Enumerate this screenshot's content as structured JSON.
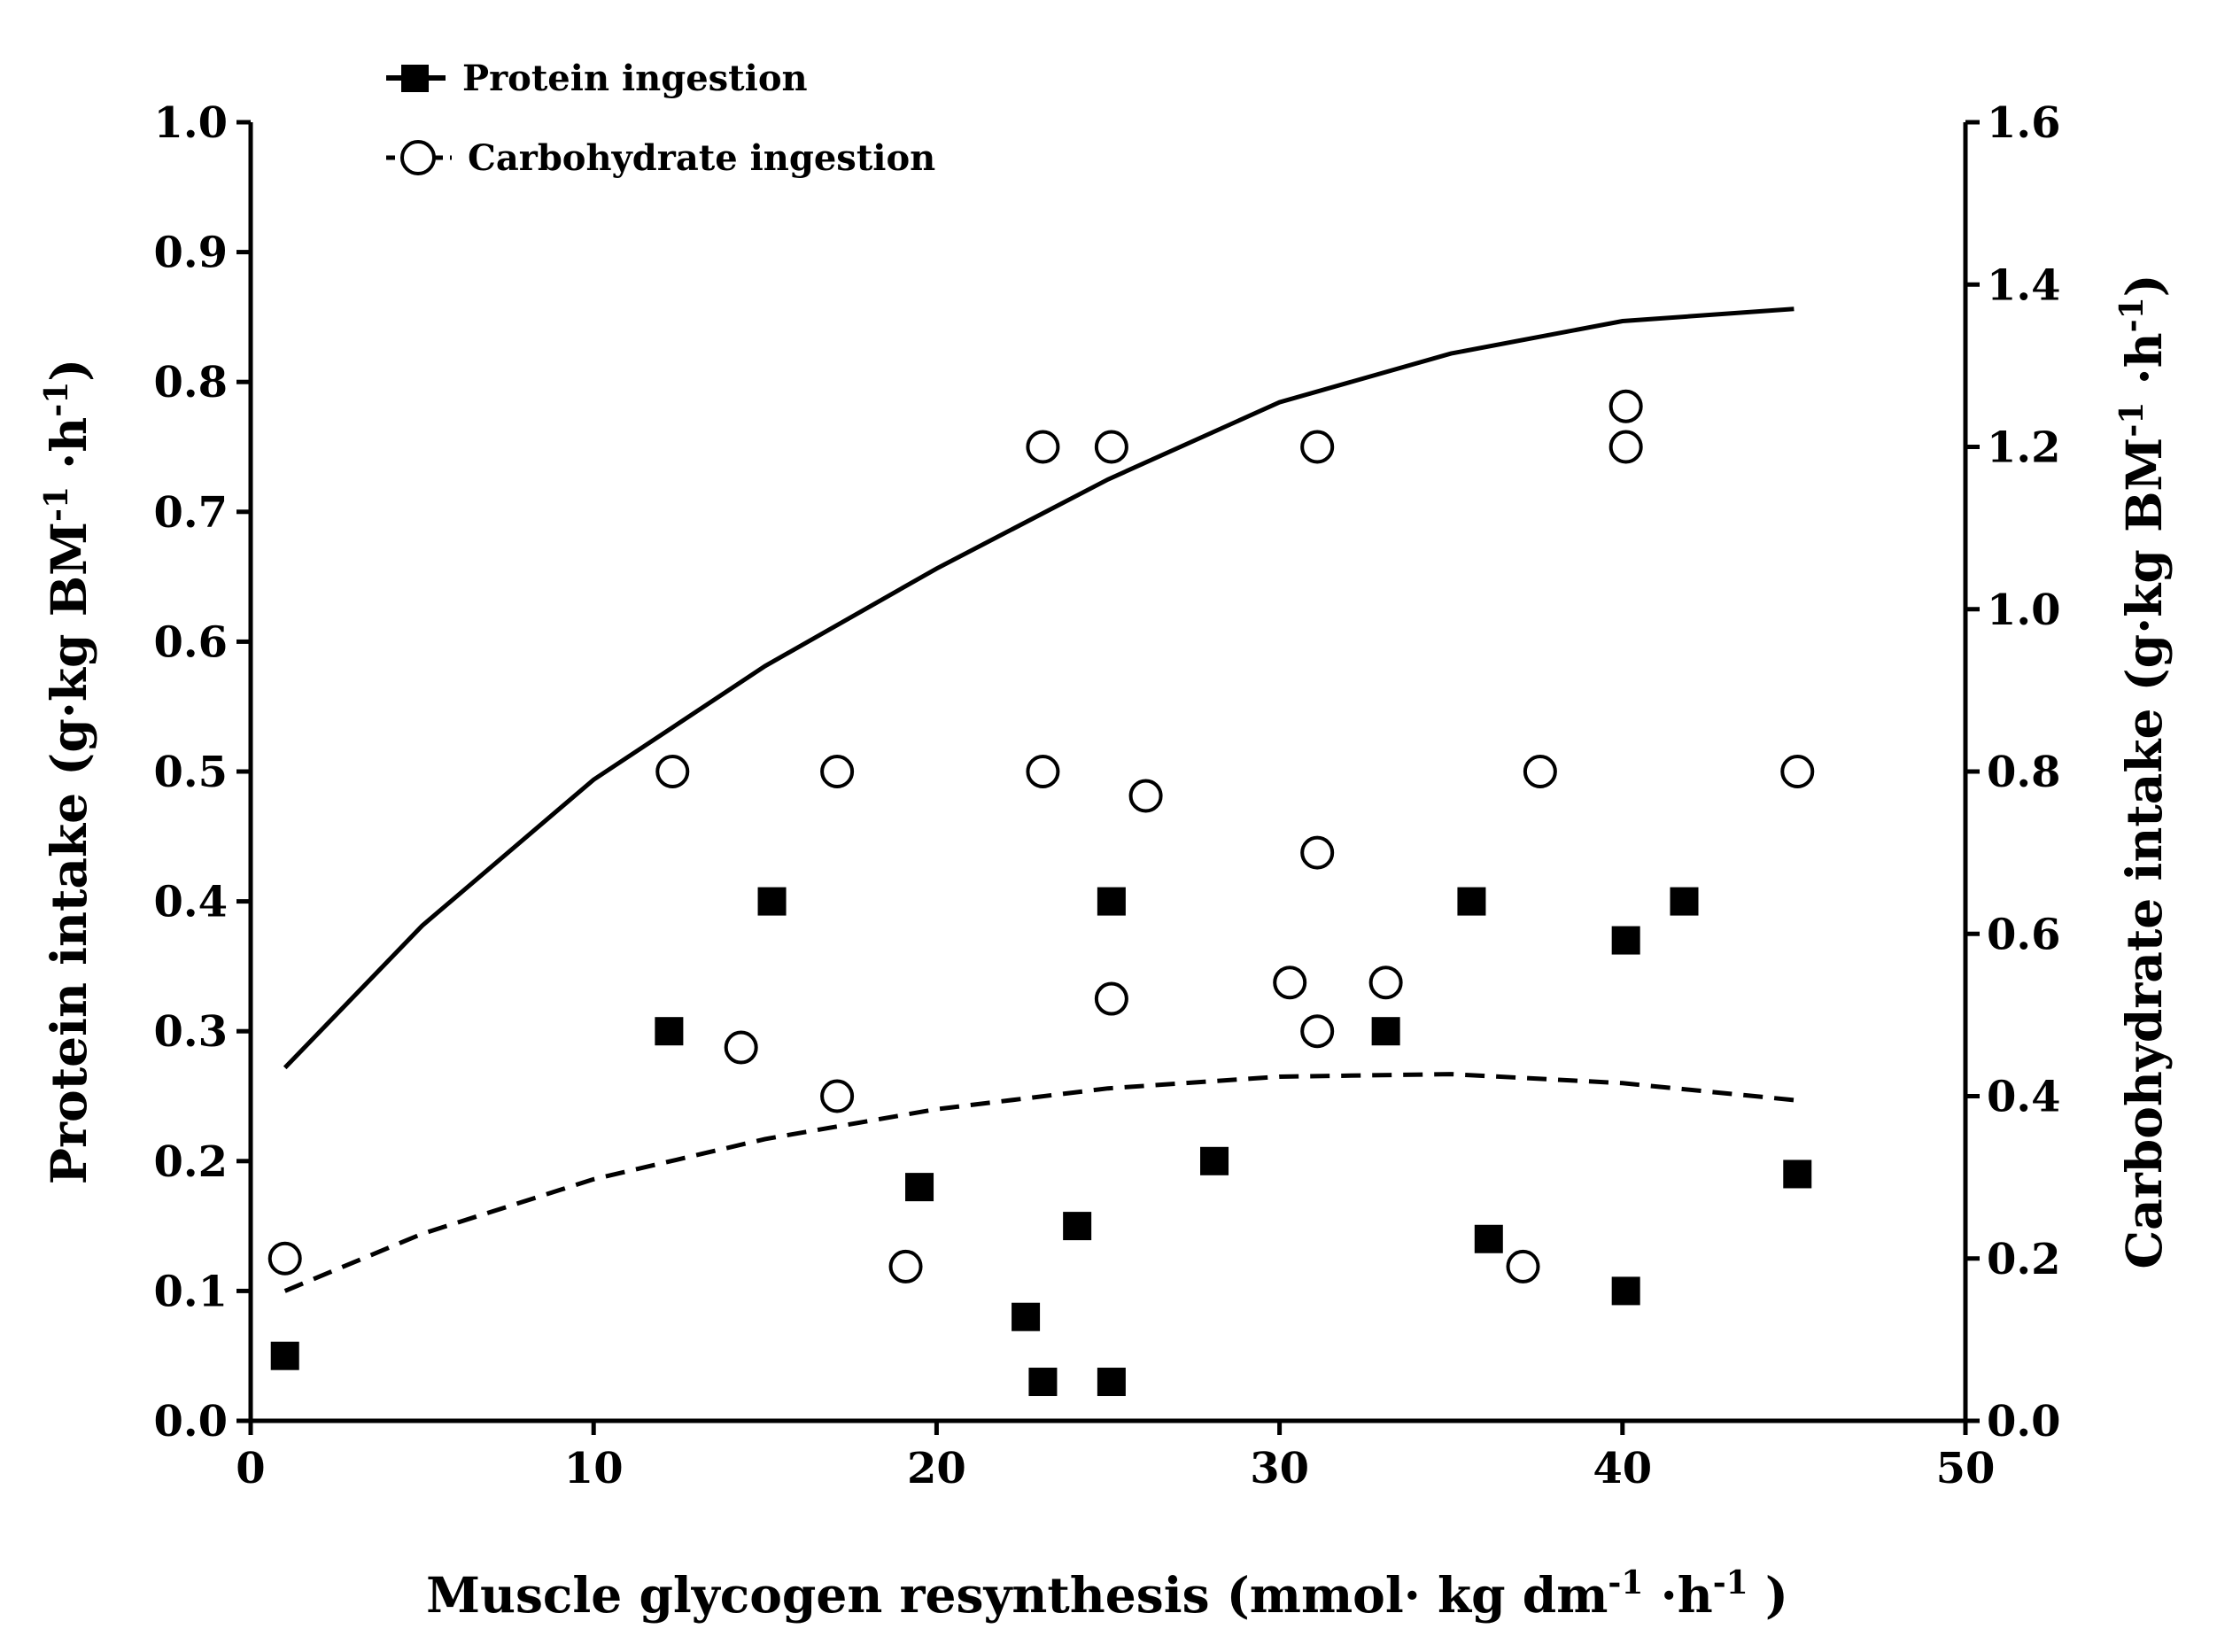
{
  "chart_data": {
    "type": "scatter",
    "xlabel": "Muscle glycogen resynthesis (mmol· kg dm",
    "xlabel_sup1": "-1",
    "xlabel_mid": " ·h",
    "xlabel_sup2": "-1",
    "xlabel_end": " )",
    "ylabel_left": "Protein intake (g·kg BM",
    "ylabel_left_sup1": "-1",
    "ylabel_left_mid": " ·h",
    "ylabel_left_sup2": "-1",
    "ylabel_left_end": ")",
    "ylabel_right": "Carbohydrate intake (g·kg BM",
    "ylabel_right_sup1": "-1",
    "ylabel_right_mid": " ·h",
    "ylabel_right_sup2": "-1",
    "ylabel_right_end": ")",
    "xlim": [
      0,
      50
    ],
    "ylim_left": [
      0,
      1.0
    ],
    "ylim_right": [
      0,
      1.6
    ],
    "x_ticks": [
      0,
      10,
      20,
      30,
      40,
      50
    ],
    "y_left_ticks": [
      "0.0",
      "0.1",
      "0.2",
      "0.3",
      "0.4",
      "0.5",
      "0.6",
      "0.7",
      "0.8",
      "0.9",
      "1.0"
    ],
    "y_right_ticks": [
      "0.0",
      "0.2",
      "0.4",
      "0.6",
      "0.8",
      "1.0",
      "1.2",
      "1.4",
      "1.6"
    ],
    "grid": false,
    "legend_position": "top-left",
    "series": [
      {
        "name": "Protein ingestion",
        "axis": "left",
        "marker": "filled-square",
        "fit_line": "dashed",
        "points": [
          [
            1,
            0.05
          ],
          [
            12.2,
            0.3
          ],
          [
            15.2,
            0.4
          ],
          [
            19.5,
            0.18
          ],
          [
            22.6,
            0.08
          ],
          [
            23.1,
            0.03
          ],
          [
            24.1,
            0.15
          ],
          [
            25.1,
            0.03
          ],
          [
            25.1,
            0.4
          ],
          [
            28.1,
            0.2
          ],
          [
            33.1,
            0.3
          ],
          [
            35.6,
            0.4
          ],
          [
            36.1,
            0.14
          ],
          [
            40.1,
            0.37
          ],
          [
            40.1,
            0.1
          ],
          [
            41.8,
            0.4
          ],
          [
            45.1,
            0.19
          ]
        ],
        "fit": [
          [
            1,
            0.1
          ],
          [
            5,
            0.144
          ],
          [
            10,
            0.186
          ],
          [
            15,
            0.217
          ],
          [
            20,
            0.24
          ],
          [
            25,
            0.256
          ],
          [
            30,
            0.265
          ],
          [
            35,
            0.267
          ],
          [
            40,
            0.26
          ],
          [
            45,
            0.247
          ]
        ]
      },
      {
        "name": "Carbohydrate ingestion",
        "axis": "right",
        "marker": "open-circle",
        "fit_line": "solid",
        "points": [
          [
            1,
            0.2
          ],
          [
            12.3,
            0.8
          ],
          [
            14.3,
            0.46
          ],
          [
            17.1,
            0.8
          ],
          [
            17.1,
            0.4
          ],
          [
            19.1,
            0.19
          ],
          [
            23.1,
            1.2
          ],
          [
            23.1,
            0.8
          ],
          [
            25.1,
            1.2
          ],
          [
            25.1,
            0.52
          ],
          [
            26.1,
            0.77
          ],
          [
            30.3,
            0.54
          ],
          [
            31.1,
            1.2
          ],
          [
            31.1,
            0.7
          ],
          [
            31.1,
            0.48
          ],
          [
            33.1,
            0.54
          ],
          [
            37.1,
            0.19
          ],
          [
            37.6,
            0.8
          ],
          [
            40.1,
            1.25
          ],
          [
            40.1,
            1.2
          ],
          [
            45.1,
            0.8
          ]
        ],
        "fit": [
          [
            1,
            0.435
          ],
          [
            5,
            0.61
          ],
          [
            10,
            0.79
          ],
          [
            15,
            0.93
          ],
          [
            20,
            1.05
          ],
          [
            25,
            1.16
          ],
          [
            30,
            1.255
          ],
          [
            35,
            1.315
          ],
          [
            40,
            1.355
          ],
          [
            45,
            1.37
          ]
        ]
      }
    ]
  }
}
